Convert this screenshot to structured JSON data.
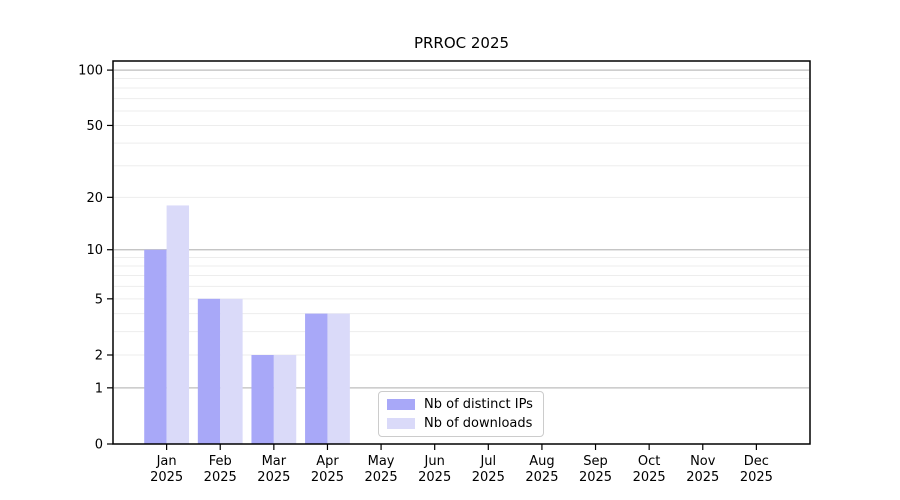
{
  "chart_data": {
    "type": "bar",
    "title": "PRROC 2025",
    "categories": [
      "Jan",
      "Feb",
      "Mar",
      "Apr",
      "May",
      "Jun",
      "Jul",
      "Aug",
      "Sep",
      "Oct",
      "Nov",
      "Dec"
    ],
    "x_year_label": "2025",
    "series": [
      {
        "name": "Nb of distinct IPs",
        "color": "#a8a8f8",
        "values": [
          10,
          5,
          2,
          4,
          0,
          0,
          0,
          0,
          0,
          0,
          0,
          0
        ]
      },
      {
        "name": "Nb of downloads",
        "color": "#dadaf9",
        "values": [
          18,
          5,
          2,
          4,
          0,
          0,
          0,
          0,
          0,
          0,
          0,
          0
        ]
      }
    ],
    "yscale": "log1p",
    "ylim": [
      0,
      112
    ],
    "ytick_labels": [
      0,
      1,
      2,
      5,
      10,
      20,
      50,
      100
    ],
    "major_gridlines": [
      1,
      10,
      100
    ],
    "minor_gridlines": [
      2,
      3,
      4,
      5,
      6,
      7,
      8,
      9,
      20,
      30,
      40,
      50,
      60,
      70,
      80,
      90
    ],
    "legend_position": "inside-lower-center",
    "grid": "horizontal",
    "colors": {
      "major_grid": "#bdbdbd",
      "minor_grid": "#ededed",
      "axis": "#000000",
      "text": "#000000",
      "background": "#ffffff",
      "legend_border": "#cccccc"
    }
  }
}
